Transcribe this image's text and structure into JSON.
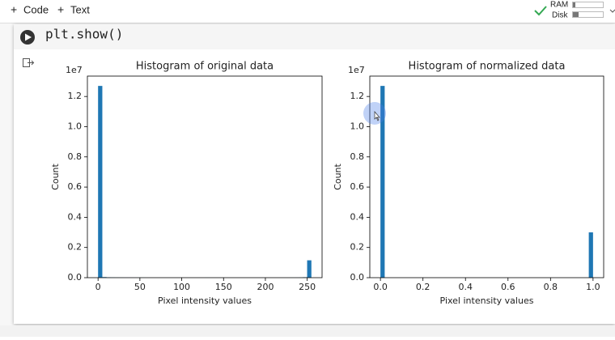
{
  "toolbar": {
    "code": "Code",
    "text": "Text",
    "ram": "RAM",
    "disk": "Disk"
  },
  "cell": {
    "code": "plt.show()"
  },
  "chart_data": [
    {
      "type": "histogram",
      "title": "Histogram of original data",
      "xlabel": "Pixel intensity values",
      "ylabel": "Count",
      "y_offset_label": "1e7",
      "color": "#1f77b4",
      "bins": [
        0,
        5.1,
        10.2,
        15.3,
        20.4,
        25.5,
        30.6,
        35.7,
        40.8,
        45.9,
        51,
        56.1,
        61.2,
        66.3,
        71.4,
        76.5,
        81.6,
        86.7,
        91.8,
        96.9,
        102,
        107.1,
        112.2,
        117.3,
        122.4,
        127.5,
        132.6,
        137.7,
        142.8,
        147.9,
        153,
        158.1,
        163.2,
        168.3,
        173.4,
        178.5,
        183.6,
        188.7,
        193.8,
        198.9,
        204,
        209.1,
        214.2,
        219.3,
        224.4,
        229.5,
        234.6,
        239.7,
        244.8,
        249.9,
        255
      ],
      "values": [
        12700000,
        40000,
        20000,
        15000,
        10000,
        8000,
        6000,
        5000,
        4000,
        3000,
        3000,
        2000,
        2000,
        2000,
        2000,
        2000,
        2000,
        2000,
        2000,
        2000,
        2000,
        2000,
        2000,
        2000,
        2000,
        3000,
        2000,
        2000,
        2000,
        2000,
        2000,
        2000,
        2000,
        2000,
        2000,
        2000,
        2000,
        2000,
        2000,
        2000,
        2000,
        2000,
        2000,
        2000,
        2000,
        3000,
        4000,
        8000,
        30000,
        1150000
      ],
      "xlim": [
        -12.75,
        267.75
      ],
      "ylim": [
        0,
        13350000
      ],
      "xticks": [
        0,
        50,
        100,
        150,
        200,
        250
      ],
      "yticks": [
        {
          "value": 0,
          "label": "0.0"
        },
        {
          "value": 2000000,
          "label": "0.2"
        },
        {
          "value": 4000000,
          "label": "0.4"
        },
        {
          "value": 6000000,
          "label": "0.6"
        },
        {
          "value": 8000000,
          "label": "0.8"
        },
        {
          "value": 10000000,
          "label": "1.0"
        },
        {
          "value": 12000000,
          "label": "1.2"
        }
      ]
    },
    {
      "type": "histogram",
      "title": "Histogram of normalized data",
      "xlabel": "Pixel intensity values",
      "ylabel": "Count",
      "y_offset_label": "1e7",
      "color": "#1f77b4",
      "bins": [
        0,
        0.02,
        0.04,
        0.06,
        0.08,
        0.1,
        0.12,
        0.14,
        0.16,
        0.18,
        0.2,
        0.22,
        0.24,
        0.26,
        0.28,
        0.3,
        0.32,
        0.34,
        0.36,
        0.38,
        0.4,
        0.42,
        0.44,
        0.46,
        0.48,
        0.5,
        0.52,
        0.54,
        0.56,
        0.58,
        0.6,
        0.62,
        0.64,
        0.66,
        0.68,
        0.7,
        0.72,
        0.74,
        0.76,
        0.78,
        0.8,
        0.82,
        0.84,
        0.86,
        0.88,
        0.9,
        0.92,
        0.94,
        0.96,
        0.98,
        1
      ],
      "values": [
        12700000,
        0,
        0,
        0,
        0,
        0,
        0,
        0,
        0,
        0,
        0,
        0,
        0,
        0,
        0,
        0,
        0,
        0,
        0,
        0,
        0,
        0,
        0,
        0,
        0,
        0,
        0,
        0,
        0,
        0,
        0,
        0,
        0,
        0,
        0,
        0,
        0,
        0,
        0,
        0,
        0,
        0,
        0,
        0,
        0,
        0,
        0,
        0,
        0,
        3000000
      ],
      "xlim": [
        -0.05,
        1.05
      ],
      "ylim": [
        0,
        13350000
      ],
      "xticks": [
        {
          "value": 0,
          "label": "0.0"
        },
        {
          "value": 0.2,
          "label": "0.2"
        },
        {
          "value": 0.4,
          "label": "0.4"
        },
        {
          "value": 0.6,
          "label": "0.6"
        },
        {
          "value": 0.8,
          "label": "0.8"
        },
        {
          "value": 1,
          "label": "1.0"
        }
      ],
      "yticks": [
        {
          "value": 0,
          "label": "0.0"
        },
        {
          "value": 2000000,
          "label": "0.2"
        },
        {
          "value": 4000000,
          "label": "0.4"
        },
        {
          "value": 6000000,
          "label": "0.6"
        },
        {
          "value": 8000000,
          "label": "0.8"
        },
        {
          "value": 10000000,
          "label": "1.0"
        },
        {
          "value": 12000000,
          "label": "1.2"
        }
      ]
    }
  ]
}
